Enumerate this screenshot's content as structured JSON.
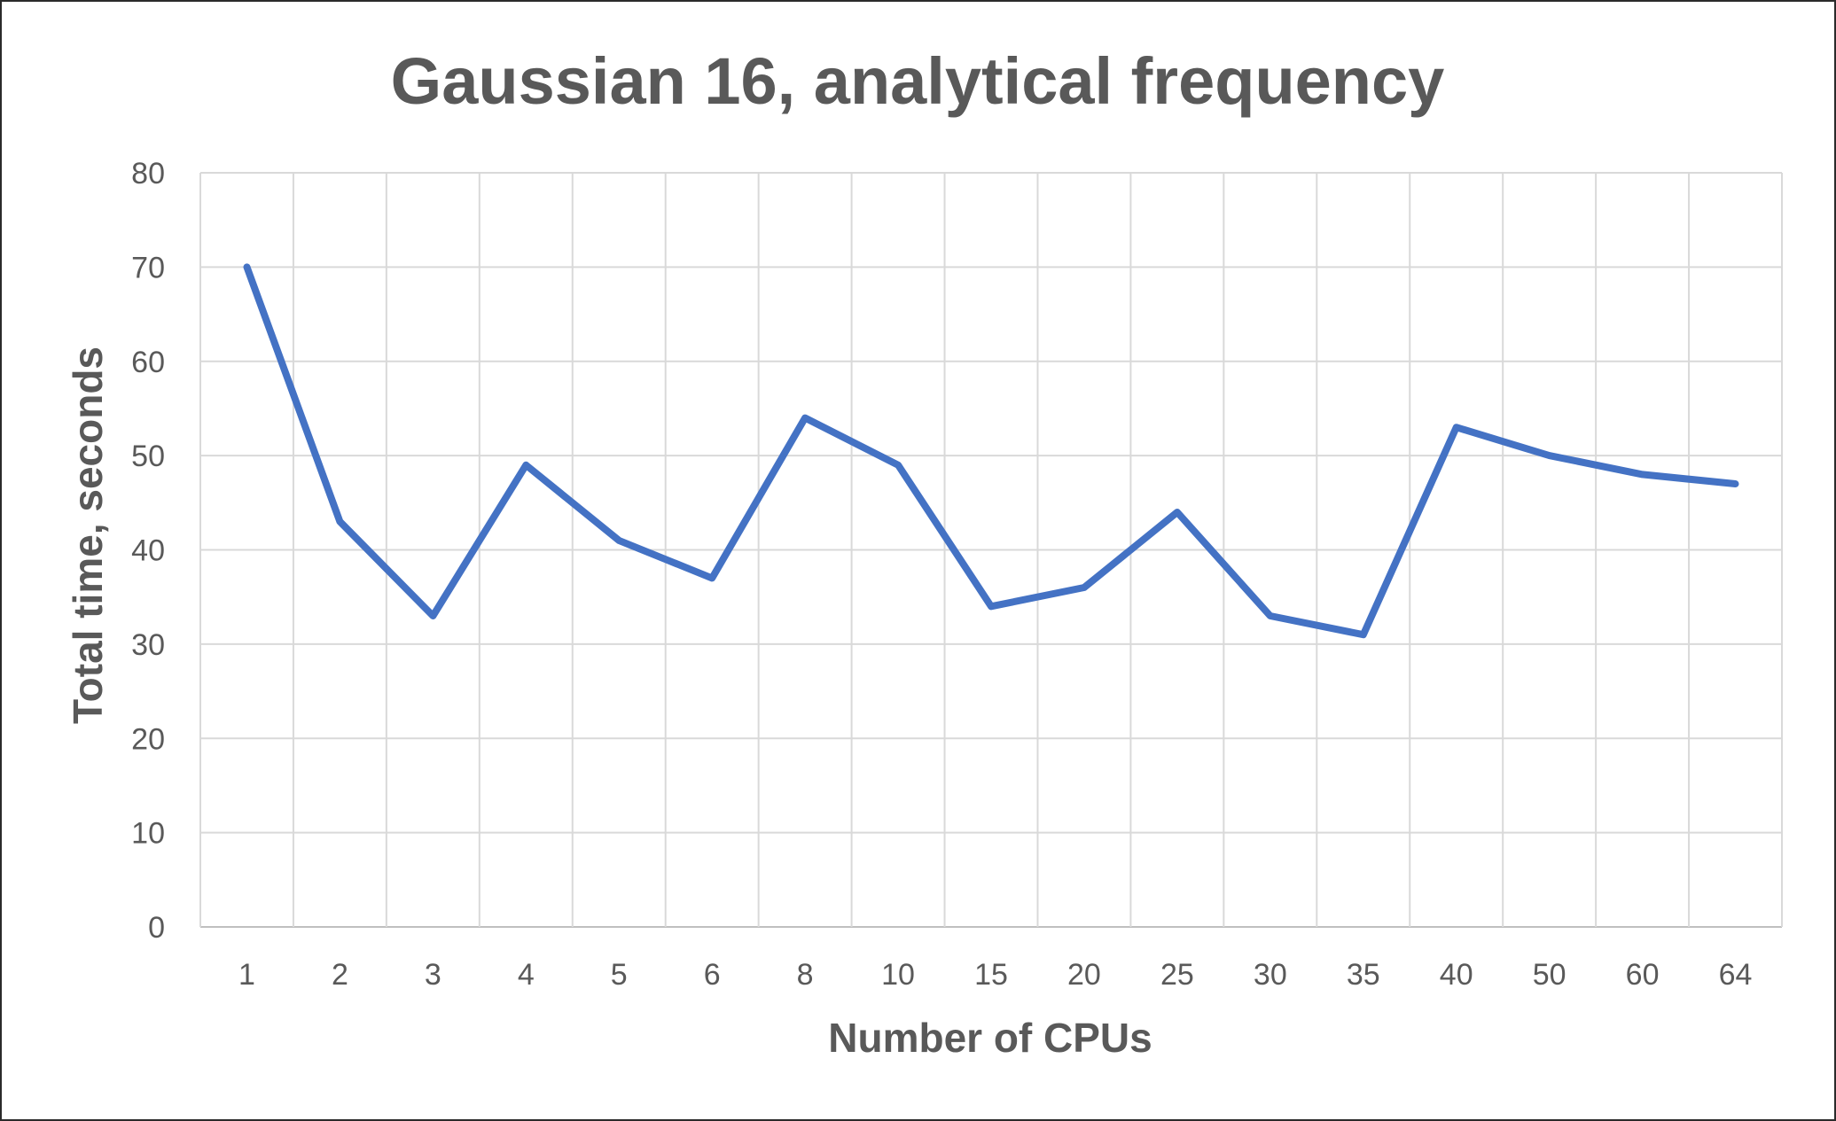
{
  "chart_data": {
    "type": "line",
    "title": "Gaussian 16, analytical frequency",
    "xlabel": "Number of CPUs",
    "ylabel": "Total time, seconds",
    "categories": [
      "1",
      "2",
      "3",
      "4",
      "5",
      "6",
      "8",
      "10",
      "15",
      "20",
      "25",
      "30",
      "35",
      "40",
      "50",
      "60",
      "64"
    ],
    "series": [
      {
        "values": [
          70,
          43,
          33,
          49,
          41,
          37,
          54,
          49,
          34,
          36,
          44,
          33,
          31,
          53,
          50,
          48,
          47
        ],
        "color": "#4472c4"
      }
    ],
    "ylim": [
      0,
      80
    ],
    "yticks": [
      0,
      10,
      20,
      30,
      40,
      50,
      60,
      70,
      80
    ],
    "grid": true,
    "legend": "none"
  }
}
